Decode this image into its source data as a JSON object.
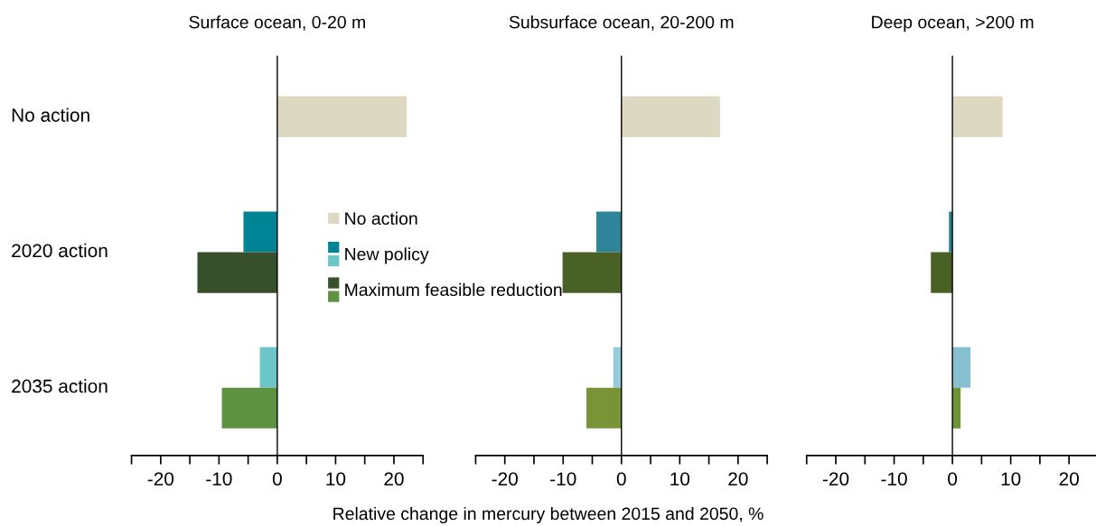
{
  "chart_data": [
    {
      "type": "bar",
      "orientation": "horizontal",
      "title": "Surface ocean, 0-20 m",
      "xlabel": "Relative change in mercury between 2015 and 2050, %",
      "categories": [
        "No action",
        "2020 action",
        "2035 action"
      ],
      "series": [
        {
          "name": "No action",
          "values": [
            22.2,
            null,
            null
          ],
          "colors": [
            "#ddd8c2",
            null,
            null
          ]
        },
        {
          "name": "New policy",
          "values": [
            null,
            -5.8,
            -3.0
          ],
          "colors": [
            null,
            "#008394",
            "#6cc5c6"
          ]
        },
        {
          "name": "Maximum feasible reduction",
          "values": [
            null,
            -13.7,
            -9.5
          ],
          "colors": [
            null,
            "#374f2a",
            "#5e9140"
          ]
        }
      ],
      "xlim": [
        -25,
        25
      ],
      "xticks": [
        {
          "value": -25,
          "label": null
        },
        -20,
        {
          "value": -15,
          "label": null
        },
        -10,
        {
          "value": -5,
          "label": null
        },
        0,
        {
          "value": 5,
          "label": null
        },
        10,
        {
          "value": 15,
          "label": null
        },
        20,
        {
          "value": 25,
          "label": null
        }
      ],
      "ref_lines": [
        {
          "axis": "x",
          "value": 0,
          "color": "#000000"
        }
      ],
      "legend": "center right"
    },
    {
      "type": "bar",
      "orientation": "horizontal",
      "title": "Subsurface ocean, 20-200 m",
      "categories": [
        null,
        null,
        null
      ],
      "series": [
        {
          "values": [
            16.9,
            null,
            null
          ],
          "colors": [
            "#ddd8c2",
            null,
            null
          ]
        },
        {
          "values": [
            null,
            -4.3,
            -1.4
          ],
          "colors": [
            null,
            "#2e8599",
            "#94cdd9"
          ]
        },
        {
          "values": [
            null,
            -10.1,
            -6.0
          ],
          "colors": [
            null,
            "#4a6125",
            "#789436"
          ]
        }
      ],
      "xlim": [
        -25,
        25
      ],
      "xticks": [
        {
          "value": -25,
          "label": null
        },
        -20,
        {
          "value": -15,
          "label": null
        },
        -10,
        {
          "value": -5,
          "label": null
        },
        0,
        {
          "value": 5,
          "label": null
        },
        10,
        {
          "value": 15,
          "label": null
        },
        20,
        {
          "value": 25,
          "label": null
        }
      ],
      "ref_lines": [
        {
          "axis": "x",
          "value": 0,
          "color": "#000000"
        }
      ]
    },
    {
      "type": "bar",
      "orientation": "horizontal",
      "title": "Deep ocean, >200 m",
      "categories": [
        null,
        null,
        null
      ],
      "series": [
        {
          "values": [
            8.6,
            null,
            null
          ],
          "colors": [
            "#ddd8c2",
            null,
            null
          ]
        },
        {
          "values": [
            null,
            -0.6,
            3.1
          ],
          "colors": [
            null,
            "#2f7f99",
            "#86bfcf"
          ]
        },
        {
          "values": [
            null,
            -3.7,
            1.4
          ],
          "colors": [
            null,
            "#4a6125",
            "#6c9435"
          ]
        }
      ],
      "xlim": [
        -25,
        25
      ],
      "xticks": [
        {
          "value": -25,
          "label": null
        },
        -20,
        {
          "value": -15,
          "label": null
        },
        -10,
        {
          "value": -5,
          "label": null
        },
        0,
        {
          "value": 5,
          "label": null
        },
        10,
        {
          "value": 15,
          "label": null
        },
        20,
        {
          "value": 25,
          "label": null
        }
      ],
      "ref_lines": [
        {
          "axis": "x",
          "value": 0,
          "color": "#000000"
        }
      ]
    }
  ]
}
